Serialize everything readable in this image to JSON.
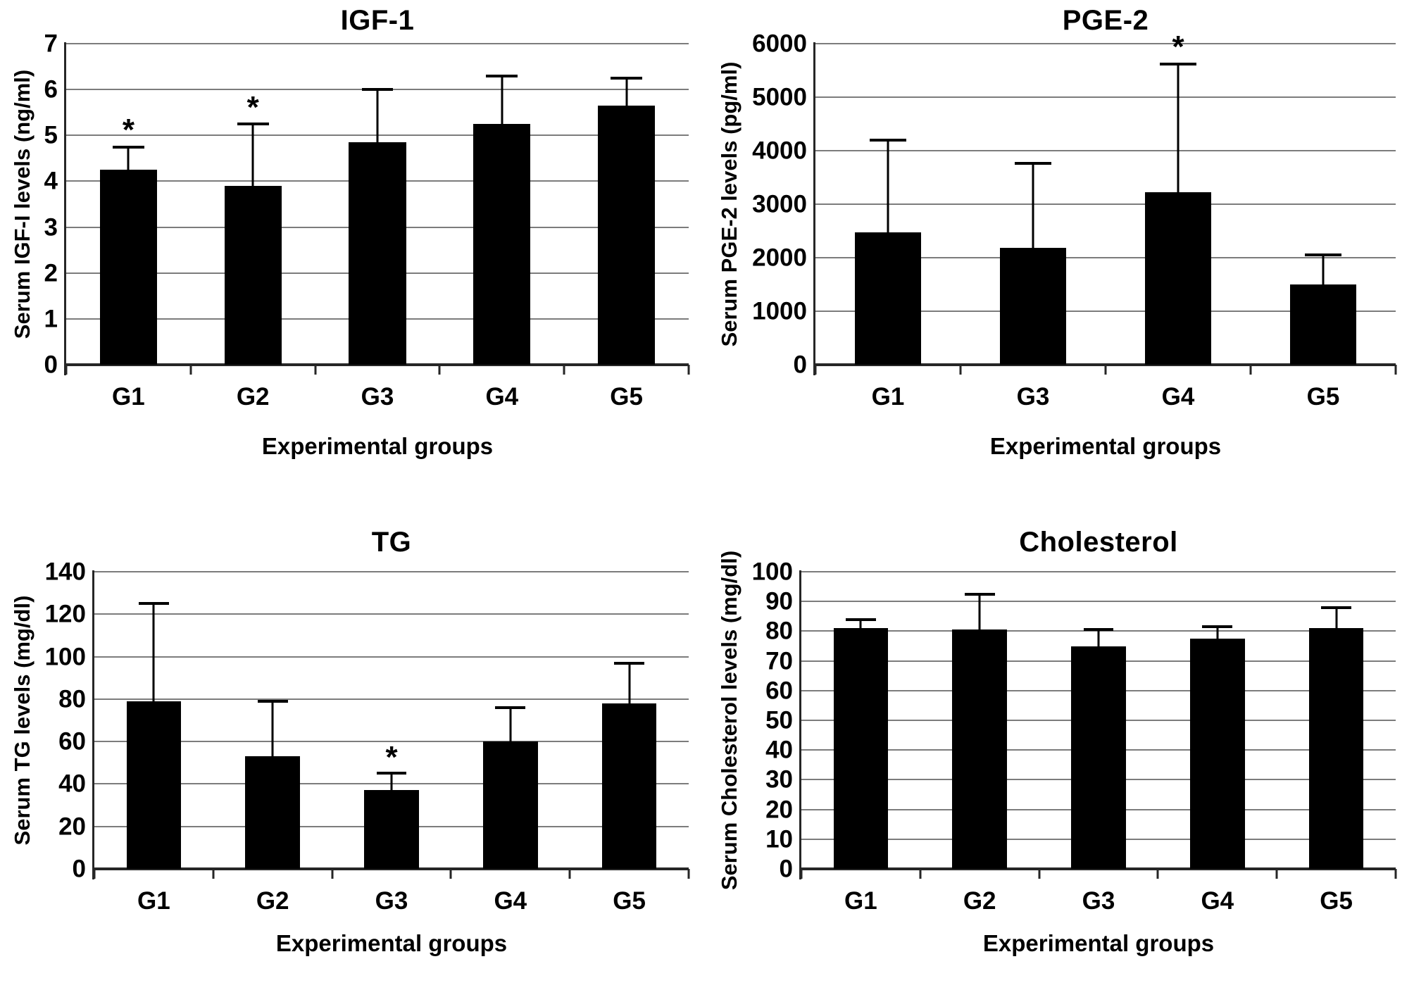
{
  "figure": {
    "background": "#ffffff",
    "text_color": "#000000",
    "bar_color": "#000000",
    "gridline_color": "#7c7c7c",
    "axis_color": "#262626",
    "significance_marker": "*"
  },
  "chart_data": [
    {
      "type": "bar",
      "title": "IGF-1",
      "ylabel": "Serum IGF-I levels (ng/ml)",
      "xlabel": "Experimental groups",
      "categories": [
        "G1",
        "G2",
        "G3",
        "G4",
        "G5"
      ],
      "values": [
        4.25,
        3.9,
        4.85,
        5.25,
        5.65
      ],
      "errors_upper": [
        4.75,
        5.25,
        6.0,
        6.3,
        6.25
      ],
      "significant": [
        true,
        true,
        false,
        false,
        false
      ],
      "ylim": [
        0,
        7
      ],
      "ystep": 1,
      "grid": true,
      "legend": null
    },
    {
      "type": "bar",
      "title": "PGE-2",
      "ylabel": "Serum PGE-2 levels (pg/ml)",
      "xlabel": "Experimental groups",
      "categories": [
        "G1",
        "G3",
        "G4",
        "G5"
      ],
      "values": [
        2480,
        2190,
        3220,
        1500
      ],
      "errors_upper": [
        4200,
        3760,
        5620,
        2050
      ],
      "significant": [
        false,
        false,
        true,
        false
      ],
      "ylim": [
        0,
        6000
      ],
      "ystep": 1000,
      "grid": true,
      "legend": null
    },
    {
      "type": "bar",
      "title": "TG",
      "ylabel": "Serum TG levels (mg/dl)",
      "xlabel": "Experimental groups",
      "categories": [
        "G1",
        "G2",
        "G3",
        "G4",
        "G5"
      ],
      "values": [
        79,
        53,
        37,
        60,
        78
      ],
      "errors_upper": [
        125,
        79,
        45,
        76,
        97
      ],
      "significant": [
        false,
        false,
        true,
        false,
        false
      ],
      "ylim": [
        0,
        140
      ],
      "ystep": 20,
      "grid": true,
      "legend": null
    },
    {
      "type": "bar",
      "title": "Cholesterol",
      "ylabel": "Serum Cholesterol levels  (mg/dl)",
      "xlabel": "Experimental groups",
      "categories": [
        "G1",
        "G2",
        "G3",
        "G4",
        "G5"
      ],
      "values": [
        81,
        80.5,
        75,
        77.5,
        81
      ],
      "errors_upper": [
        84,
        92.5,
        80.5,
        81.5,
        88
      ],
      "significant": [
        false,
        false,
        false,
        false,
        false
      ],
      "ylim": [
        0,
        100
      ],
      "ystep": 10,
      "grid": true,
      "legend": null
    }
  ]
}
